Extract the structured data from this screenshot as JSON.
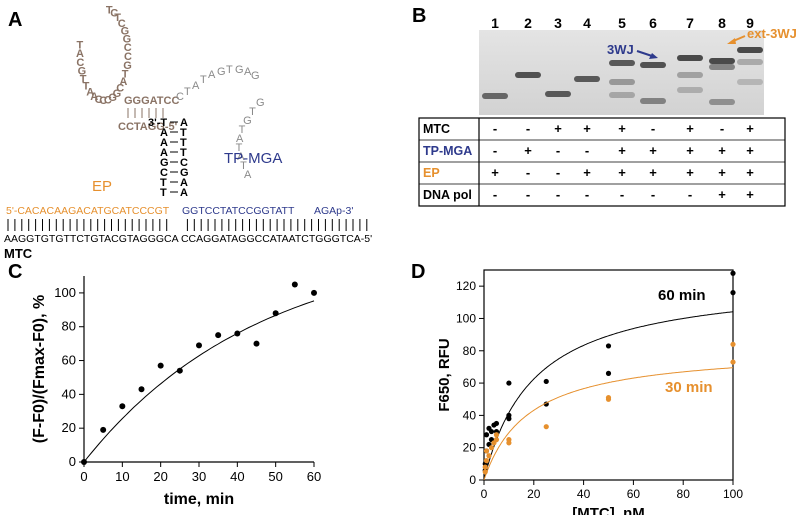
{
  "colors": {
    "black": "#000000",
    "brown": "#8a7365",
    "orange": "#e6902e",
    "blue": "#2e3a8c"
  },
  "panels": {
    "a": "A",
    "b": "B",
    "c": "C",
    "d": "D"
  },
  "panelA": {
    "hairpin_loop": [
      "T",
      "C",
      "T",
      "C",
      "G",
      "G",
      "C",
      "C",
      "G",
      "T",
      "A",
      "C",
      "G",
      "G",
      "C",
      "C",
      "C",
      "A",
      "A",
      "T",
      "T",
      "G",
      "C",
      "A",
      "T"
    ],
    "stem_upper": "GGGATCC",
    "stem_lower": "CCTAGG-5'",
    "loop_top": "ATAGTGA",
    "loop_right": [
      "G",
      "T",
      "G",
      "T",
      "A",
      "T",
      "A",
      "T",
      "A"
    ],
    "junction_left": [
      "3'-T",
      "A",
      "A",
      "A",
      "G",
      "C",
      "T",
      "T"
    ],
    "junction_right": [
      "A",
      "T",
      "T",
      "T",
      "C",
      "G",
      "A",
      "A"
    ],
    "label_ep": "EP",
    "label_tpmga": "TP-MGA",
    "strand_ep": "5'-CACACAAGACATGCATCCCGT",
    "strand_tp": "GGTCCTATCCGGTATT",
    "strand_tp_end": "AGAp-3'",
    "strand_mtc": "AAGGTGTGTTCTGTACGTAGGGCA CCAGGATAGGCCATAATCTGGGTCA-5'",
    "label_mtc": "MTC"
  },
  "panelB": {
    "lanes": [
      "1",
      "2",
      "3",
      "4",
      "5",
      "6",
      "7",
      "8",
      "9"
    ],
    "label_3wj": "3WJ",
    "label_ext": "ext-3WJ",
    "rows": [
      {
        "label": "MTC",
        "vals": [
          "-",
          "-",
          "+",
          "+",
          "+",
          "-",
          "+",
          "-",
          "+"
        ]
      },
      {
        "label": "TP-MGA",
        "vals": [
          "-",
          "+",
          "-",
          "-",
          "+",
          "+",
          "+",
          "+",
          "+"
        ]
      },
      {
        "label": "EP",
        "vals": [
          "+",
          "-",
          "-",
          "+",
          "+",
          "+",
          "+",
          "+",
          "+"
        ]
      },
      {
        "label": "DNA pol",
        "vals": [
          "-",
          "-",
          "-",
          "-",
          "-",
          "-",
          "-",
          "+",
          "+"
        ]
      }
    ]
  },
  "chart_data": [
    {
      "type": "scatter",
      "ylabel": "(F-F0)/(Fmax-F0), %",
      "xlabel": "time, min",
      "xlim": [
        0,
        60
      ],
      "ylim": [
        0,
        110
      ],
      "xticks": [
        "0",
        "10",
        "20",
        "30",
        "40",
        "50",
        "60"
      ],
      "yticks": [
        "0",
        "20",
        "40",
        "60",
        "80",
        "100"
      ],
      "points": [
        [
          0,
          0
        ],
        [
          5,
          19
        ],
        [
          10,
          33
        ],
        [
          15,
          43
        ],
        [
          20,
          57
        ],
        [
          25,
          54
        ],
        [
          30,
          69
        ],
        [
          35,
          75
        ],
        [
          40,
          76
        ],
        [
          45,
          70
        ],
        [
          50,
          88
        ],
        [
          55,
          105
        ],
        [
          60,
          100
        ]
      ],
      "fit": {
        "name": "fit",
        "a": 130,
        "k": 0.022
      }
    },
    {
      "type": "scatter",
      "ylabel": "F650, RFU",
      "xlabel": "[MTC], nM",
      "xlim": [
        0,
        100
      ],
      "ylim": [
        0,
        130
      ],
      "xticks": [
        "0",
        "20",
        "40",
        "60",
        "80",
        "100"
      ],
      "yticks": [
        "0",
        "20",
        "40",
        "60",
        "80",
        "100",
        "120"
      ],
      "series": [
        {
          "name": "60 min",
          "color": "#000000",
          "vmax": 125,
          "kd": 20,
          "points": [
            [
              0.5,
              6
            ],
            [
              0.5,
              10
            ],
            [
              1,
              18
            ],
            [
              1,
              28
            ],
            [
              2,
              22
            ],
            [
              2,
              32
            ],
            [
              3,
              25
            ],
            [
              3,
              30
            ],
            [
              4,
              34
            ],
            [
              5,
              35
            ],
            [
              5,
              30
            ],
            [
              10,
              38
            ],
            [
              10,
              40
            ],
            [
              10,
              60
            ],
            [
              25,
              47
            ],
            [
              25,
              61
            ],
            [
              50,
              66
            ],
            [
              50,
              83
            ],
            [
              100,
              128
            ],
            [
              100,
              116
            ]
          ]
        },
        {
          "name": "30 min",
          "color": "#e6902e",
          "vmax": 82,
          "kd": 18,
          "points": [
            [
              0.5,
              5
            ],
            [
              0.5,
              8
            ],
            [
              1,
              12
            ],
            [
              1,
              18
            ],
            [
              2,
              15
            ],
            [
              3,
              20
            ],
            [
              4,
              23
            ],
            [
              5,
              28
            ],
            [
              5,
              25
            ],
            [
              10,
              23
            ],
            [
              10,
              25
            ],
            [
              25,
              33
            ],
            [
              50,
              51
            ],
            [
              50,
              50
            ],
            [
              100,
              84
            ],
            [
              100,
              73
            ]
          ]
        }
      ]
    }
  ]
}
